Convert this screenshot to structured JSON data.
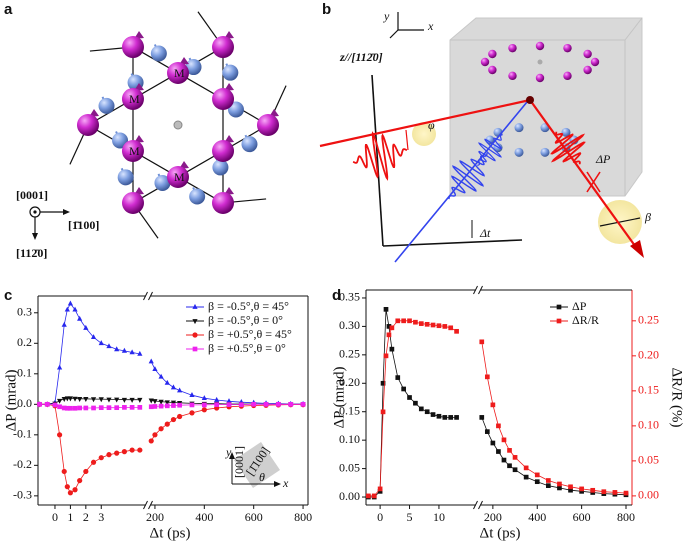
{
  "panel_labels": [
    "a",
    "b",
    "c",
    "d"
  ],
  "diagram_a": {
    "atom_labels": [
      "M",
      "M",
      "M",
      "M"
    ],
    "axis_labels": [
      "[0001]",
      "[1̄100]",
      "[112̄0]"
    ]
  },
  "diagram_b": {
    "labels": {
      "y": "y",
      "x": "x",
      "z": "z//[112̄0]",
      "phi": "φ",
      "dp": "ΔP",
      "beta": "β",
      "dt": "Δt"
    }
  },
  "chart_data": [
    {
      "type": "line",
      "y_label": "ΔP (mrad)",
      "x_label": "Δt (ps)",
      "legend": "upper right",
      "x_segments": [
        {
          "xlim": [
            -1.1,
            5.9
          ],
          "xticks": [
            0,
            1,
            2,
            3
          ]
        },
        {
          "xlim": [
            180,
            820
          ],
          "xticks": [
            200,
            400,
            600,
            800
          ]
        }
      ],
      "ylim": [
        -0.33,
        0.355
      ],
      "yticks": [
        -0.3,
        -0.2,
        -0.1,
        {
          "value": 0,
          "label": "0.0"
        },
        0.1,
        0.2,
        0.3
      ],
      "x": [
        -1,
        -0.5,
        0,
        0.3,
        0.6,
        0.8,
        1,
        1.3,
        1.6,
        2,
        2.5,
        3,
        3.5,
        4,
        4.5,
        5,
        5.5,
        185,
        200,
        225,
        250,
        275,
        300,
        350,
        400,
        450,
        500,
        550,
        600,
        650,
        700,
        750,
        800
      ],
      "series": [
        {
          "name": "β = -0.5°,θ = 45°",
          "color": "#2727ee",
          "marker": "triangle-up",
          "values": [
            0,
            0,
            0.005,
            0.12,
            0.26,
            0.31,
            0.33,
            0.31,
            0.28,
            0.25,
            0.22,
            0.2,
            0.19,
            0.18,
            0.175,
            0.17,
            0.165,
            0.14,
            0.115,
            0.09,
            0.07,
            0.055,
            0.045,
            0.03,
            0.02,
            0.014,
            0.01,
            0.007,
            0.005,
            0.003,
            0.002,
            0.001,
            0.001
          ]
        },
        {
          "name": "β = -0.5°,θ = 0°",
          "color": "#111111",
          "marker": "triangle-down",
          "values": [
            0,
            0,
            0.003,
            0.012,
            0.018,
            0.02,
            0.02,
            0.019,
            0.018,
            0.018,
            0.017,
            0.017,
            0.016,
            0.016,
            0.015,
            0.015,
            0.015,
            0.013,
            0.011,
            0.009,
            0.007,
            0.006,
            0.005,
            0.003,
            0.002,
            0.002,
            0.001,
            0.001,
            0.001,
            0,
            0,
            0,
            0
          ]
        },
        {
          "name": "β = +0.5°,θ = 45°",
          "color": "#ee1c1c",
          "marker": "circle",
          "values": [
            0,
            0,
            -0.005,
            -0.1,
            -0.22,
            -0.27,
            -0.29,
            -0.28,
            -0.25,
            -0.22,
            -0.19,
            -0.175,
            -0.165,
            -0.16,
            -0.155,
            -0.15,
            -0.15,
            -0.12,
            -0.1,
            -0.08,
            -0.065,
            -0.05,
            -0.04,
            -0.028,
            -0.018,
            -0.012,
            -0.008,
            -0.006,
            -0.004,
            -0.003,
            -0.002,
            -0.001,
            -0.001
          ]
        },
        {
          "name": "β = +0.5°,θ = 0°",
          "color": "#ee22ee",
          "marker": "square",
          "values": [
            0,
            0,
            -0.002,
            -0.008,
            -0.012,
            -0.013,
            -0.013,
            -0.013,
            -0.012,
            -0.012,
            -0.012,
            -0.011,
            -0.011,
            -0.011,
            -0.01,
            -0.01,
            -0.01,
            -0.008,
            -0.007,
            -0.006,
            -0.005,
            -0.004,
            -0.003,
            -0.002,
            -0.002,
            -0.001,
            -0.001,
            -0.001,
            0,
            0,
            0,
            0,
            0
          ]
        }
      ],
      "inset": {
        "y": "y",
        "x": "x",
        "theta": "θ",
        "axis_a": "[0001]",
        "axis_b": "[1̄100]"
      }
    },
    {
      "type": "line",
      "y_label": "ΔP (mrad)",
      "y2_label": "ΔR/R (%)",
      "x_label": "Δt (ps)",
      "legend": "upper right",
      "x_segments": [
        {
          "xlim": [
            -2.4,
            16.3
          ],
          "xticks": [
            0,
            5,
            10
          ]
        },
        {
          "xlim": [
            142,
            827
          ],
          "xticks": [
            200,
            400,
            600,
            800
          ]
        }
      ],
      "ylim": [
        -0.014,
        0.364
      ],
      "yticks": [
        {
          "value": 0,
          "label": "0.00"
        },
        0.05,
        {
          "value": 0.1,
          "label": "0.10"
        },
        0.15,
        {
          "value": 0.2,
          "label": "0.20"
        },
        0.25,
        {
          "value": 0.3,
          "label": "0.30"
        },
        0.35
      ],
      "y2lim": [
        -0.013,
        0.294
      ],
      "y2ticks": [
        {
          "value": 0,
          "label": "0.00"
        },
        0.05,
        {
          "value": 0.1,
          "label": "0.10"
        },
        0.15,
        {
          "value": 0.2,
          "label": "0.20"
        },
        0.25
      ],
      "y2color": "#ee1c1c",
      "x": [
        -2,
        -1,
        0,
        0.5,
        1,
        1.5,
        2,
        3,
        4,
        5,
        6,
        7,
        8,
        9,
        10,
        11,
        12,
        13,
        150,
        175,
        200,
        225,
        250,
        275,
        300,
        350,
        400,
        450,
        500,
        550,
        600,
        650,
        700,
        750,
        800
      ],
      "series": [
        {
          "name": "ΔP",
          "color": "#111111",
          "marker": "square",
          "values": [
            0,
            0,
            0.01,
            0.2,
            0.33,
            0.3,
            0.26,
            0.21,
            0.19,
            0.175,
            0.165,
            0.155,
            0.15,
            0.145,
            0.142,
            0.14,
            0.14,
            0.14,
            0.14,
            0.115,
            0.095,
            0.08,
            0.065,
            0.055,
            0.048,
            0.035,
            0.027,
            0.02,
            0.016,
            0.012,
            0.01,
            0.008,
            0.006,
            0.005,
            0.004
          ]
        },
        {
          "name": "ΔR/R",
          "color": "#ee1c1c",
          "marker": "square",
          "axis": "y2",
          "values": [
            0,
            0,
            0.01,
            0.12,
            0.2,
            0.23,
            0.24,
            0.25,
            0.25,
            0.25,
            0.248,
            0.246,
            0.245,
            0.244,
            0.243,
            0.242,
            0.24,
            0.235,
            0.22,
            0.17,
            0.13,
            0.1,
            0.08,
            0.065,
            0.055,
            0.04,
            0.03,
            0.022,
            0.017,
            0.013,
            0.01,
            0.008,
            0.006,
            0.005,
            0.004
          ]
        }
      ]
    }
  ]
}
